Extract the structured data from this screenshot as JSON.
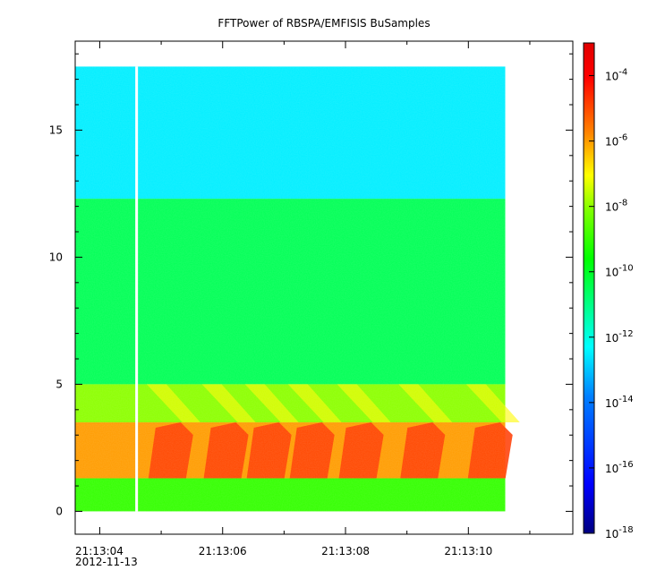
{
  "chart_data": {
    "type": "heatmap",
    "title": "FFTPower of RBSPA/EMFISIS  BuSamples",
    "xlabel": "",
    "ylabel": "",
    "x_ticks": [
      "21:13:04",
      "21:13:06",
      "21:13:08",
      "21:13:10"
    ],
    "x_date_label": "2012-11-13",
    "x_range": [
      "21:13:03.6",
      "21:13:11.7"
    ],
    "data_x_range": [
      "21:13:03.6",
      "21:13:10.6"
    ],
    "data_gap_x": "21:13:04.6",
    "y_ticks": [
      0,
      5,
      10,
      15
    ],
    "ylim": [
      -0.9,
      18.5
    ],
    "data_y_range": [
      0,
      17.5
    ],
    "colorbar": {
      "scale": "log",
      "range": [
        1e-18,
        0.001
      ],
      "tick_labels": [
        "10",
        "10",
        "10",
        "10",
        "10",
        "10",
        "10",
        "10"
      ],
      "tick_exponents": [
        "-18",
        "-16",
        "-14",
        "-12",
        "-10",
        "-8",
        "-6",
        "-4"
      ],
      "colormap": [
        "#000080",
        "#0000ff",
        "#0080ff",
        "#00ffff",
        "#00ff80",
        "#00ff00",
        "#80ff00",
        "#ffff00",
        "#ff8000",
        "#ff0000",
        "#e00000"
      ]
    },
    "bands": [
      {
        "y_from": 12.3,
        "y_to": 17.5,
        "level_log10": -12.5
      },
      {
        "y_from": 5.0,
        "y_to": 12.3,
        "level_log10": -10.5
      },
      {
        "y_from": 3.5,
        "y_to": 5.0,
        "level_log10": -8
      },
      {
        "y_from": 1.3,
        "y_to": 3.5,
        "level_log10": -6
      },
      {
        "y_from": 0.0,
        "y_to": 1.3,
        "level_log10": -9
      }
    ],
    "wave_packets_x": [
      "21:13:05.2",
      "21:13:06.1",
      "21:13:06.8",
      "21:13:07.5",
      "21:13:08.3",
      "21:13:09.3",
      "21:13:10.4"
    ]
  }
}
